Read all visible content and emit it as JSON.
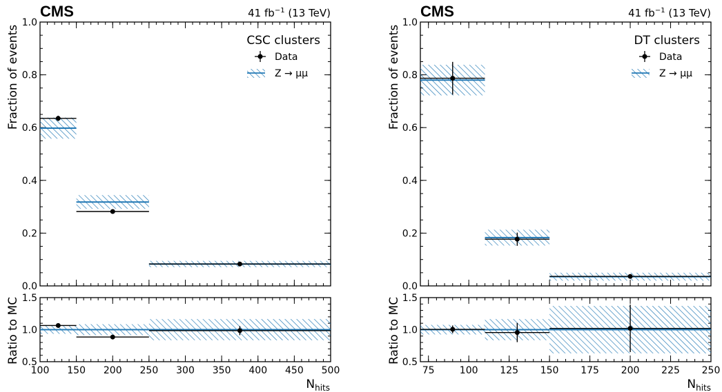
{
  "figure": {
    "experiment_label": "CMS",
    "lumi_prefix": "41 fb",
    "lumi_exponent": "−1",
    "lumi_suffix": " (13 TeV)",
    "legend_data_label": "Data",
    "legend_mc_label": "Z → μμ",
    "colors": {
      "mc": "#1f77b4",
      "data": "#000000"
    }
  },
  "chart_data": [
    {
      "type": "histogram",
      "legend_title": "CSC clusters",
      "xlabel_main": "N",
      "xlabel_sub": "hits",
      "ylabel": "Fraction of events",
      "ratio_ylabel": "Ratio to MC",
      "xlim": [
        100,
        500
      ],
      "ylim": [
        0,
        1.0
      ],
      "ratio_ylim": [
        0.5,
        1.5
      ],
      "x_ticks": [
        "100",
        "150",
        "200",
        "250",
        "300",
        "350",
        "400",
        "450",
        "500"
      ],
      "y_ticks": [
        "0.0",
        "0.2",
        "0.4",
        "0.6",
        "0.8",
        "1.0"
      ],
      "ratio_ticks": [
        "0.5",
        "1.0",
        "1.5"
      ],
      "bins": [
        [
          100,
          150
        ],
        [
          150,
          250
        ],
        [
          250,
          500
        ]
      ],
      "mc": {
        "values": [
          0.598,
          0.318,
          0.083
        ],
        "unc": [
          0.04,
          0.026,
          0.012
        ]
      },
      "data": {
        "x": [
          125,
          200,
          375
        ],
        "values": [
          0.635,
          0.282,
          0.083
        ],
        "err": [
          0.01,
          0.005,
          0.006
        ]
      },
      "ratio": {
        "mc_unc": [
          0.065,
          0.085,
          0.165
        ],
        "data_values": [
          1.065,
          0.885,
          0.985
        ],
        "data_err": [
          0.015,
          0.015,
          0.07
        ]
      }
    },
    {
      "type": "histogram",
      "legend_title": "DT clusters",
      "xlabel_main": "N",
      "xlabel_sub": "hits",
      "ylabel": "Fraction of events",
      "ratio_ylabel": "Ratio to MC",
      "xlim": [
        70,
        250
      ],
      "ylim": [
        0,
        1.0
      ],
      "ratio_ylim": [
        0.5,
        1.5
      ],
      "x_ticks": [
        "75",
        "100",
        "125",
        "150",
        "175",
        "200",
        "225",
        "250"
      ],
      "y_ticks": [
        "0.0",
        "0.2",
        "0.4",
        "0.6",
        "0.8",
        "1.0"
      ],
      "ratio_ticks": [
        "0.5",
        "1.0",
        "1.5"
      ],
      "bins": [
        [
          70,
          110
        ],
        [
          110,
          150
        ],
        [
          150,
          250
        ]
      ],
      "mc": {
        "values": [
          0.78,
          0.183,
          0.035
        ],
        "unc": [
          0.058,
          0.03,
          0.015
        ]
      },
      "data": {
        "x": [
          90,
          130,
          200
        ],
        "values": [
          0.787,
          0.177,
          0.036
        ],
        "err": [
          0.062,
          0.025,
          0.007
        ]
      },
      "ratio": {
        "mc_unc": [
          0.075,
          0.165,
          0.37
        ],
        "data_values": [
          1.005,
          0.955,
          1.02
        ],
        "data_err": [
          0.06,
          0.15,
          0.37
        ]
      }
    }
  ]
}
